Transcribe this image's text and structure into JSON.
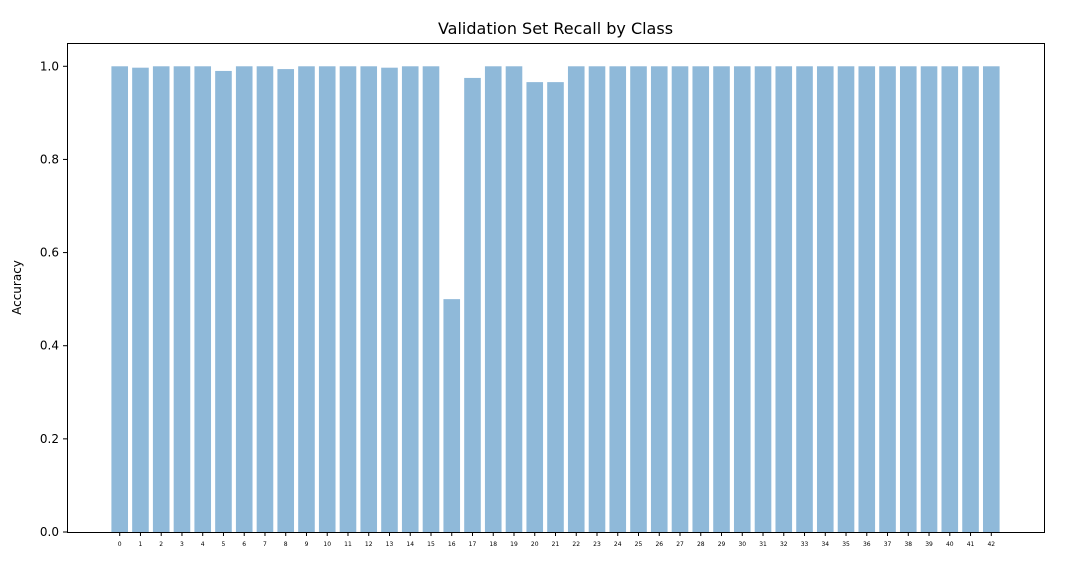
{
  "chart_data": {
    "type": "bar",
    "title": "Validation Set Recall by Class",
    "xlabel": "",
    "ylabel": "Accuracy",
    "ylim": [
      0.0,
      1.05
    ],
    "yticks": [
      0.0,
      0.2,
      0.4,
      0.6,
      0.8,
      1.0
    ],
    "ytick_labels": [
      "0.0",
      "0.2",
      "0.4",
      "0.6",
      "0.8",
      "1.0"
    ],
    "categories": [
      "0",
      "1",
      "2",
      "3",
      "4",
      "5",
      "6",
      "7",
      "8",
      "9",
      "10",
      "11",
      "12",
      "13",
      "14",
      "15",
      "16",
      "17",
      "18",
      "19",
      "20",
      "21",
      "22",
      "23",
      "24",
      "25",
      "26",
      "27",
      "28",
      "29",
      "30",
      "31",
      "32",
      "33",
      "34",
      "35",
      "36",
      "37",
      "38",
      "39",
      "40",
      "41",
      "42"
    ],
    "values": [
      1.0,
      0.997,
      1.0,
      1.0,
      1.0,
      0.99,
      1.0,
      1.0,
      0.994,
      1.0,
      1.0,
      1.0,
      1.0,
      0.997,
      1.0,
      1.0,
      0.5,
      0.975,
      1.0,
      1.0,
      0.966,
      0.966,
      1.0,
      1.0,
      1.0,
      1.0,
      1.0,
      1.0,
      1.0,
      1.0,
      1.0,
      1.0,
      1.0,
      1.0,
      1.0,
      1.0,
      1.0,
      1.0,
      1.0,
      1.0,
      1.0,
      1.0,
      1.0
    ],
    "grid": false,
    "legend": "none",
    "bar_color": "#8fb9d9",
    "axis_color": "#000000"
  }
}
